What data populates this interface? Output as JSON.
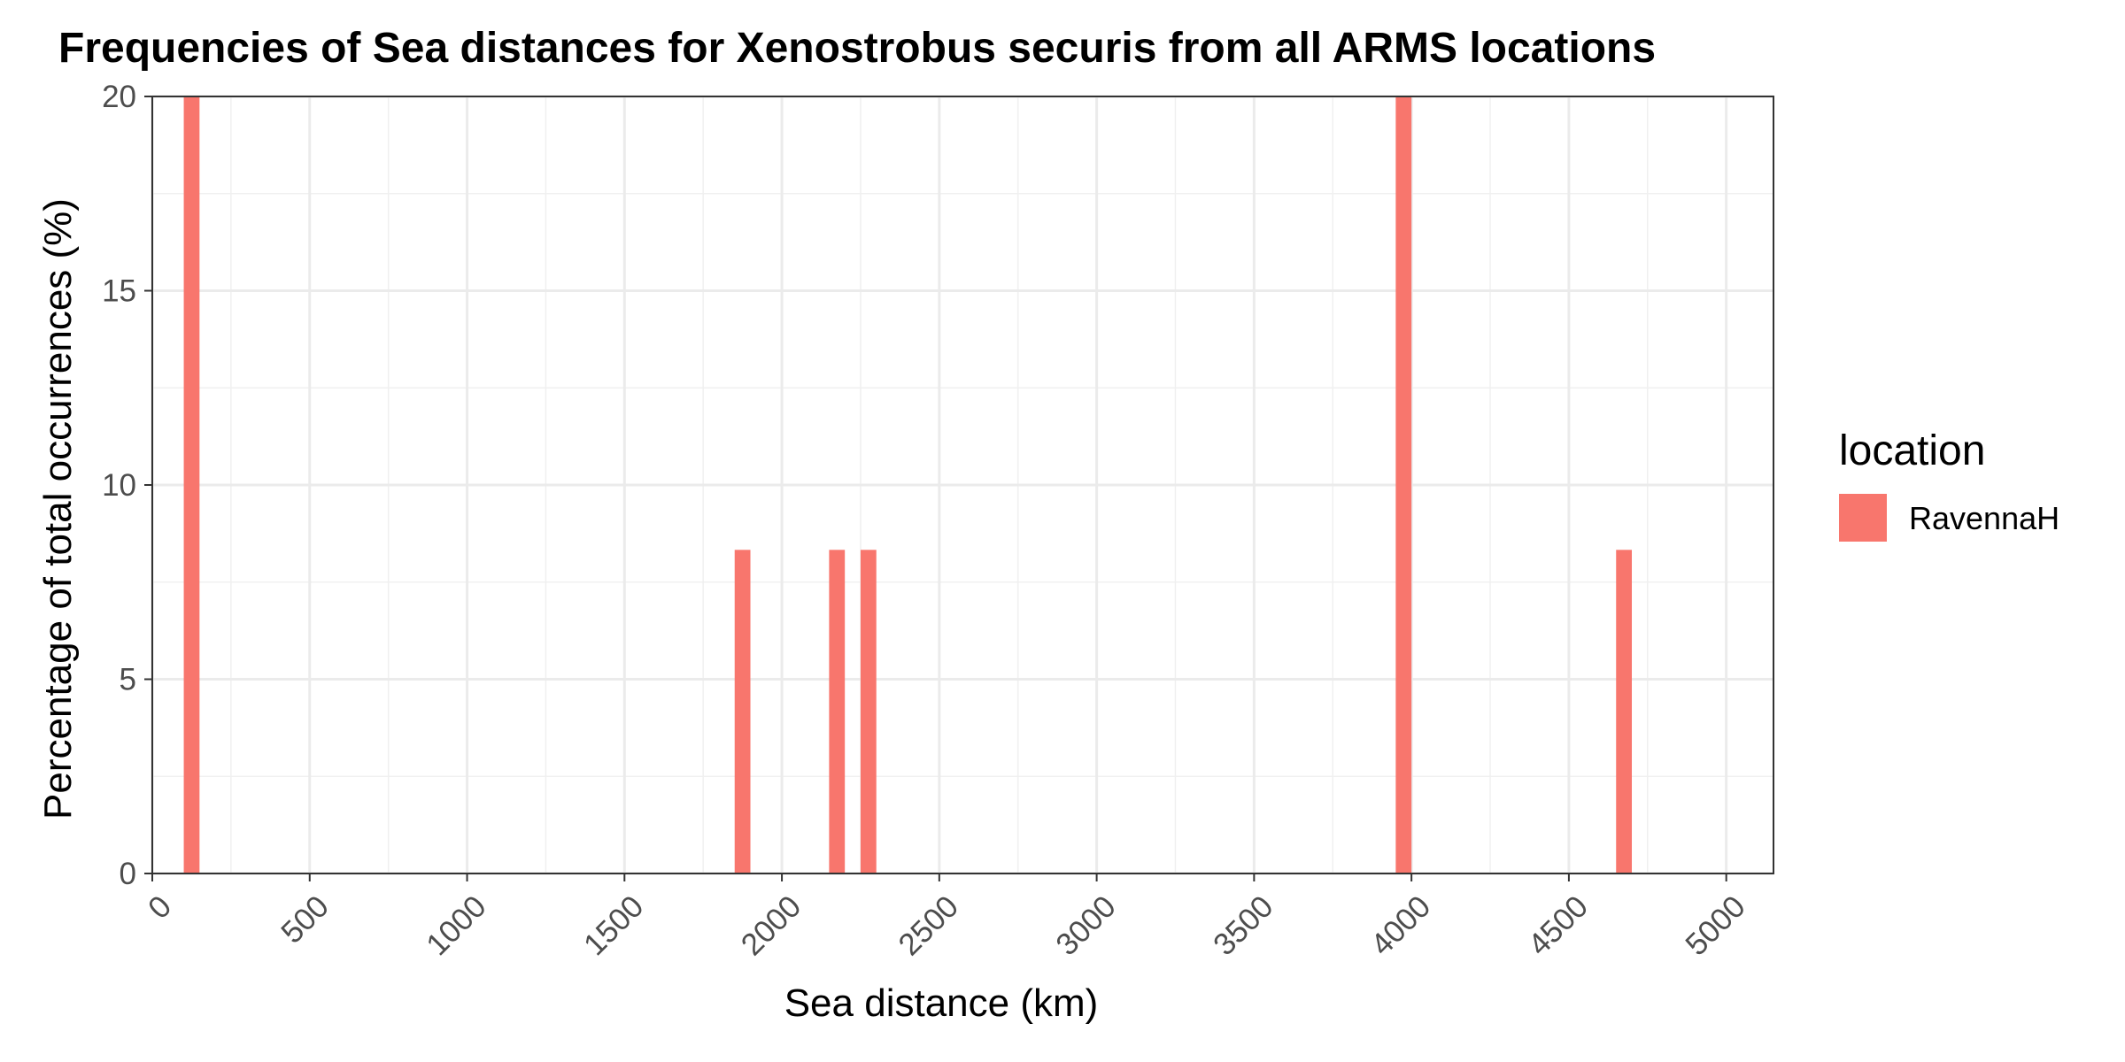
{
  "chart_data": {
    "type": "bar",
    "title": "Frequencies of Sea distances for Xenostrobus securis from all ARMS locations",
    "xlabel": "Sea distance (km)",
    "ylabel": "Percentage of total occurrences (%)",
    "xlim": [
      0,
      5150
    ],
    "ylim": [
      0,
      20
    ],
    "x_ticks": [
      "0",
      "500",
      "1000",
      "1500",
      "2000",
      "2500",
      "3000",
      "3500",
      "4000",
      "4500",
      "5000"
    ],
    "x_tick_values": [
      0,
      500,
      1000,
      1500,
      2000,
      2500,
      3000,
      3500,
      4000,
      4500,
      5000
    ],
    "y_ticks": [
      "0",
      "5",
      "10",
      "15",
      "20"
    ],
    "y_tick_values": [
      0,
      5,
      10,
      15,
      20
    ],
    "bar_width": 50,
    "grid": true,
    "legend": {
      "title": "location",
      "position": "right",
      "entries": [
        {
          "name": "RavennaH",
          "color": "#F8766D"
        }
      ]
    },
    "series": [
      {
        "name": "RavennaH",
        "color": "#F8766D",
        "x": [
          125,
          1875,
          2175,
          2275,
          3975,
          4675
        ],
        "values": [
          20,
          8.33,
          8.33,
          8.33,
          20,
          8.33
        ]
      }
    ]
  }
}
